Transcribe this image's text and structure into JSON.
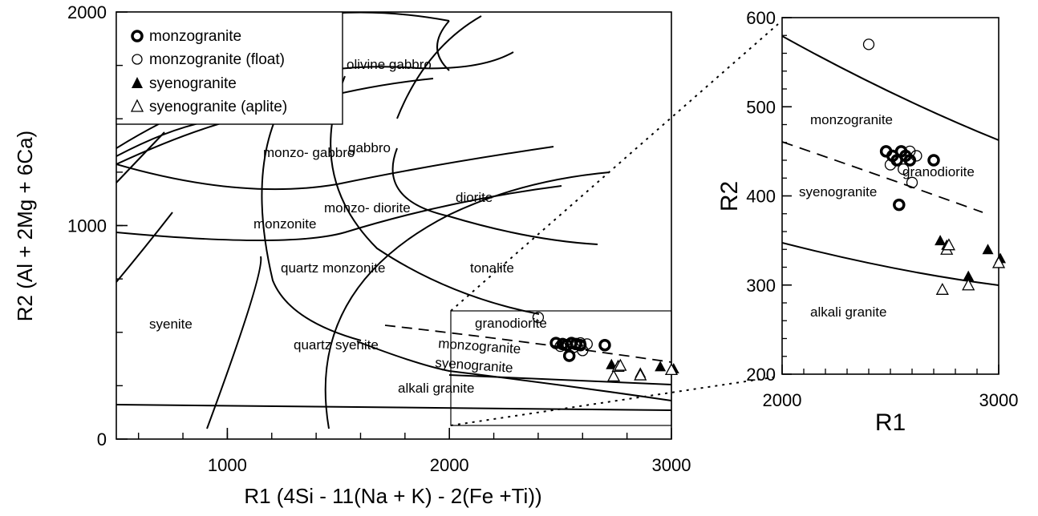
{
  "chart_data": [
    {
      "type": "scatter",
      "xlabel": "R1 (4Si - 11(Na + K) - 2(Fe +Ti))",
      "ylabel": "R2 (Al + 2Mg + 6Ca)",
      "xlim": [
        500,
        3000
      ],
      "ylim": [
        0,
        2000
      ],
      "xticks": [
        1000,
        2000,
        3000
      ],
      "yticks": [
        0,
        1000,
        2000
      ],
      "legend": {
        "placement": "top-left",
        "entries": [
          {
            "label": "monzogranite",
            "marker": "thick-circle"
          },
          {
            "label": "monzogranite (float)",
            "marker": "open-circle"
          },
          {
            "label": "syenogranite",
            "marker": "filled-triangle"
          },
          {
            "label": "syenogranite (aplite)",
            "marker": "open-triangle"
          }
        ]
      },
      "field_labels": [
        "olivine gabbro",
        "gabbro",
        "monzo- gabbro",
        "diorite",
        "monzonite",
        "monzo- diorite",
        "tonalite",
        "syenite",
        "quartz monzonite",
        "quartz syenite",
        "granodiorite",
        "monzogranite",
        "syenogranite",
        "alkali granite"
      ],
      "series": [
        {
          "name": "monzogranite",
          "x": [
            2480,
            2510,
            2530,
            2550,
            2570,
            2590,
            2700,
            2540
          ],
          "y": [
            450,
            445,
            440,
            450,
            445,
            440,
            440,
            390
          ]
        },
        {
          "name": "monzogranite (float)",
          "x": [
            2400,
            2500,
            2560,
            2590,
            2600,
            2620
          ],
          "y": [
            570,
            435,
            430,
            450,
            415,
            445
          ]
        },
        {
          "name": "syenogranite",
          "x": [
            2730,
            2760,
            2860,
            2950,
            3010
          ],
          "y": [
            350,
            345,
            310,
            340,
            330
          ]
        },
        {
          "name": "syenogranite (aplite)",
          "x": [
            2740,
            2760,
            2770,
            2860,
            3000
          ],
          "y": [
            295,
            340,
            345,
            300,
            325
          ]
        }
      ]
    },
    {
      "type": "scatter",
      "xlabel": "R1",
      "ylabel": "R2",
      "xlim": [
        2000,
        3000
      ],
      "ylim": [
        200,
        600
      ],
      "xticks": [
        2000,
        3000
      ],
      "yticks": [
        200,
        300,
        400,
        500,
        600
      ],
      "field_labels": [
        "granodiorite",
        "monzogranite",
        "syenogranite",
        "alkali granite"
      ],
      "series": [
        {
          "name": "monzogranite",
          "x": [
            2480,
            2510,
            2530,
            2550,
            2570,
            2590,
            2700,
            2540
          ],
          "y": [
            450,
            445,
            440,
            450,
            445,
            440,
            440,
            390
          ]
        },
        {
          "name": "monzogranite (float)",
          "x": [
            2400,
            2500,
            2560,
            2590,
            2600,
            2620
          ],
          "y": [
            570,
            435,
            430,
            450,
            415,
            445
          ]
        },
        {
          "name": "syenogranite",
          "x": [
            2730,
            2760,
            2860,
            2950,
            3010
          ],
          "y": [
            350,
            345,
            310,
            340,
            330
          ]
        },
        {
          "name": "syenogranite (aplite)",
          "x": [
            2740,
            2760,
            2770,
            2860,
            3000
          ],
          "y": [
            295,
            340,
            345,
            300,
            325
          ]
        }
      ]
    }
  ]
}
